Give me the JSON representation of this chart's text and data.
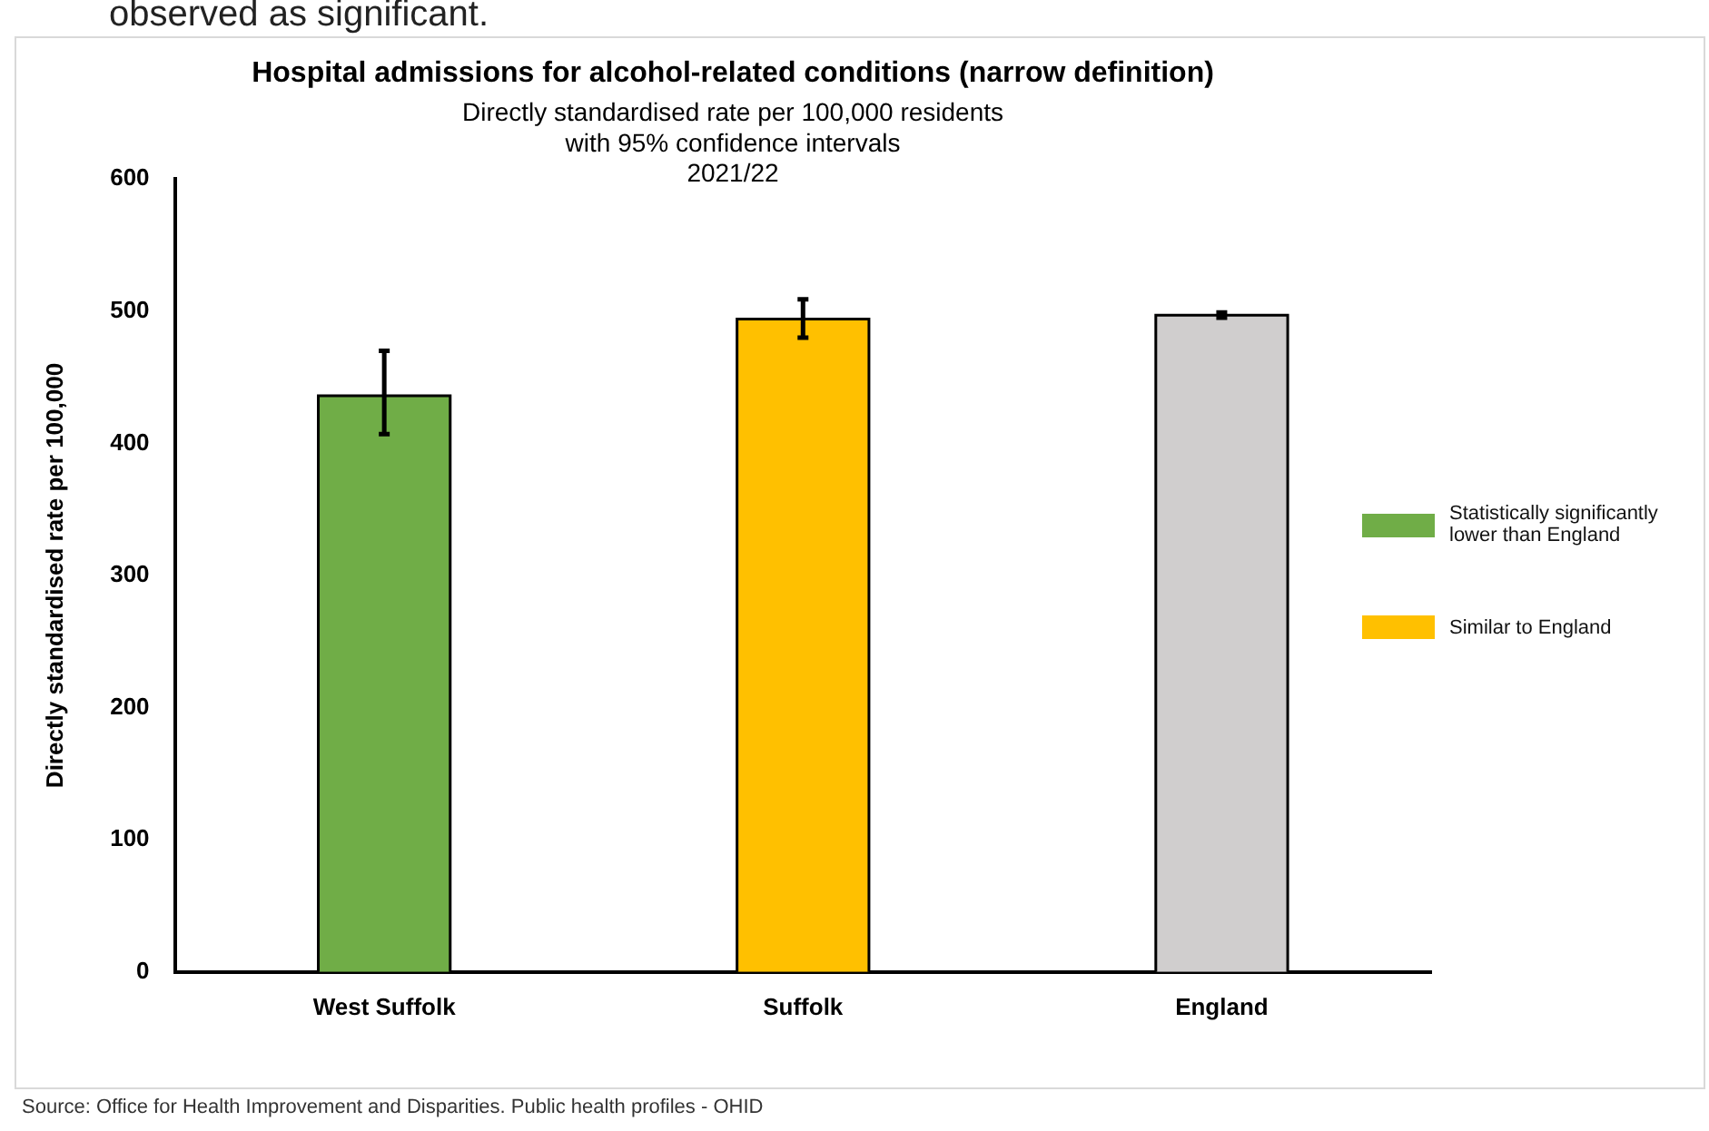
{
  "chart_data": {
    "type": "bar",
    "title": "Hospital admissions for alcohol-related conditions (narrow definition)",
    "subtitle": "Directly standardised rate per 100,000 residents\nwith 95% confidence intervals\n2021/22",
    "ylabel": "Directly standardised rate per 100,000",
    "categories": [
      "West Suffolk",
      "Suffolk",
      "England"
    ],
    "series": [
      {
        "name": "Statistically significantly lower than England",
        "color": "#70ad47",
        "values": [
          436,
          null,
          null
        ],
        "errors": [
          [
            407,
            470
          ],
          null,
          null
        ]
      },
      {
        "name": "Similar to England",
        "color": "#ffc000",
        "values": [
          null,
          494,
          null
        ],
        "errors": [
          null,
          [
            480,
            509
          ],
          null
        ]
      },
      {
        "color": "#d0cece",
        "values": [
          null,
          null,
          497
        ],
        "errors": [
          null,
          null,
          [
            495,
            499
          ]
        ]
      }
    ],
    "ylim": [
      0,
      600
    ],
    "yticks": [
      0,
      100,
      200,
      300,
      400,
      500,
      600
    ],
    "grid": false,
    "legend": "right",
    "annotations": [
      "observed as significant.",
      "Source: Office for Health Improvement and Disparities. Public health profiles - OHID"
    ]
  }
}
